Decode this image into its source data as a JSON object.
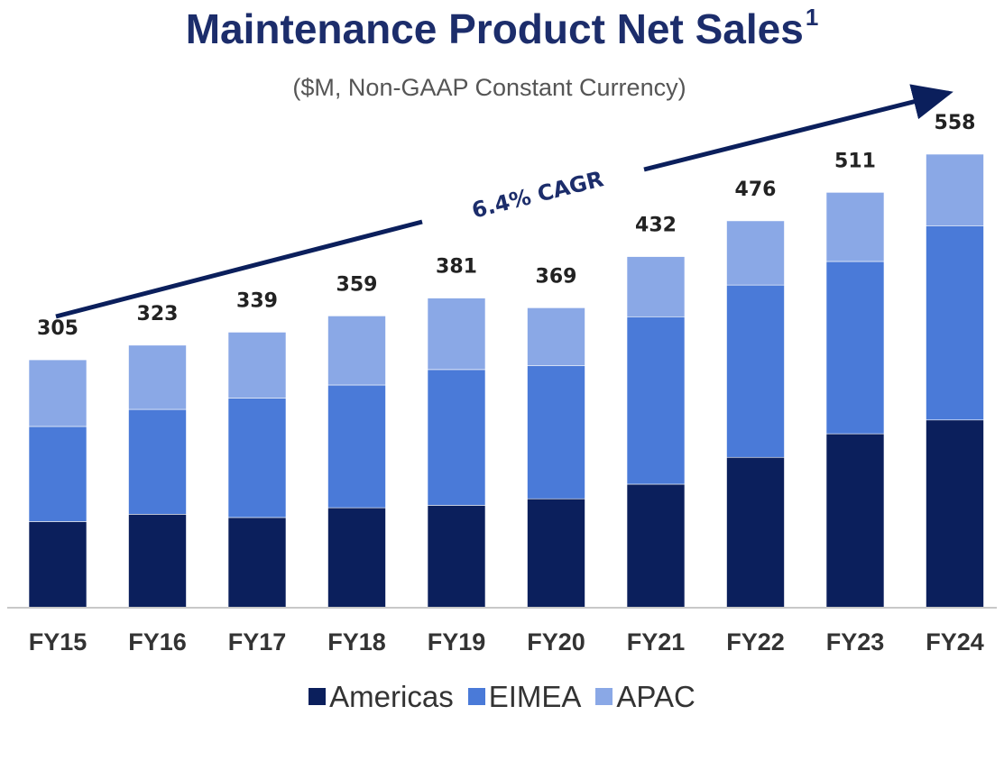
{
  "title": "Maintenance Product Net Sales",
  "title_superscript": "1",
  "subtitle": "($M, Non-GAAP Constant Currency)",
  "chart_data": {
    "type": "bar",
    "stacked": true,
    "categories": [
      "FY15",
      "FY16",
      "FY17",
      "FY18",
      "FY19",
      "FY20",
      "FY21",
      "FY22",
      "FY23",
      "FY24"
    ],
    "series": [
      {
        "name": "Americas",
        "color": "#0b1f5c",
        "values": [
          106,
          115,
          111,
          123,
          126,
          134,
          152,
          185,
          214,
          231
        ]
      },
      {
        "name": "EIMEA",
        "color": "#4a7ad8",
        "values": [
          117,
          129,
          147,
          151,
          167,
          164,
          206,
          212,
          212,
          239
        ]
      },
      {
        "name": "APAC",
        "color": "#8aa8e6",
        "values": [
          82,
          79,
          81,
          85,
          88,
          71,
          74,
          79,
          85,
          88
        ]
      }
    ],
    "totals": [
      305,
      323,
      339,
      359,
      381,
      369,
      432,
      476,
      511,
      558
    ],
    "annotation": "6.4% CAGR",
    "ylim": [
      0,
      600
    ],
    "grid": false,
    "legend_position": "bottom"
  }
}
